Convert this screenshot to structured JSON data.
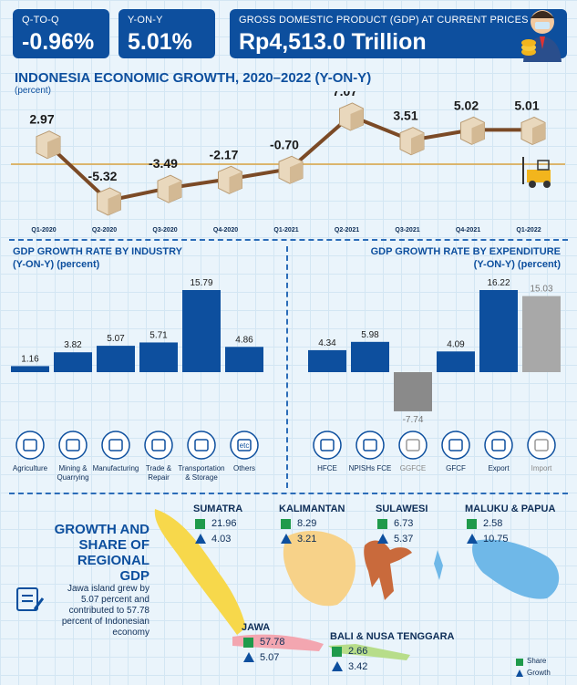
{
  "header": {
    "qtoq": {
      "label": "Q-TO-Q",
      "value": "-0.96%"
    },
    "yony": {
      "label": "Y-ON-Y",
      "value": "5.01%"
    },
    "gdp": {
      "label": "GROSS DOMESTIC PRODUCT (GDP) AT CURRENT PRICES",
      "value": "Rp4,513.0 Trillion"
    }
  },
  "growth": {
    "title": "INDONESIA ECONOMIC GROWTH, 2020–2022 (Y-ON-Y)",
    "unit": "(percent)"
  },
  "industry": {
    "title": "GDP GROWTH RATE BY INDUSTRY",
    "unit": "(Y-ON-Y) (percent)"
  },
  "expenditure": {
    "title": "GDP GROWTH RATE BY EXPENDITURE",
    "unit": "(Y-ON-Y) (percent)"
  },
  "regional": {
    "title_lines": [
      "GROWTH AND",
      "SHARE OF",
      "REGIONAL GDP"
    ],
    "note_lines": [
      "Jawa island grew by",
      "5.07 percent and",
      "contributed to 57.78",
      "percent of Indonesian",
      "economy"
    ],
    "legend": {
      "share": "Share",
      "growth": "Growth"
    },
    "regions": [
      {
        "name": "SUMATRA",
        "share": "21.96",
        "growth": "4.03"
      },
      {
        "name": "KALIMANTAN",
        "share": "8.29",
        "growth": "3.21"
      },
      {
        "name": "SULAWESI",
        "share": "6.73",
        "growth": "5.37"
      },
      {
        "name": "MALUKU & PAPUA",
        "share": "2.58",
        "growth": "10.75"
      },
      {
        "name": "JAWA",
        "share": "57.78",
        "growth": "5.07"
      },
      {
        "name": "BALI & NUSA TENGGARA",
        "share": "2.66",
        "growth": "3.42"
      }
    ]
  },
  "chart_data": [
    {
      "type": "line",
      "title": "INDONESIA ECONOMIC GROWTH, 2020–2022 (Y-ON-Y)",
      "ylabel": "(percent)",
      "categories": [
        "Q1-2020",
        "Q2-2020",
        "Q3-2020",
        "Q4-2020",
        "Q1-2021",
        "Q2-2021",
        "Q3-2021",
        "Q4-2021",
        "Q1-2022"
      ],
      "values": [
        2.97,
        -5.32,
        -3.49,
        -2.17,
        -0.7,
        7.07,
        3.51,
        5.02,
        5.01
      ],
      "labels": [
        "2.97",
        "-5.32",
        "-3.49",
        "-2.17",
        "-0.70",
        "7.07",
        "3.51",
        "5.02",
        "5.01"
      ],
      "ylim": [
        -6,
        8
      ]
    },
    {
      "type": "bar",
      "title": "GDP GROWTH RATE BY INDUSTRY",
      "ylabel": "(Y-ON-Y) (percent)",
      "categories": [
        "Agriculture",
        "Mining & Quarrying",
        "Manufacturing",
        "Trade & Repair",
        "Transportation & Storage",
        "Others"
      ],
      "category_lines": [
        [
          "Agriculture"
        ],
        [
          "Mining &",
          "Quarrying"
        ],
        [
          "Manufacturing"
        ],
        [
          "Trade &",
          "Repair"
        ],
        [
          "Transportation",
          "& Storage"
        ],
        [
          "Others"
        ]
      ],
      "icon_texts": [
        "",
        "",
        "",
        "",
        "",
        "etc"
      ],
      "values": [
        1.16,
        3.82,
        5.07,
        5.71,
        15.79,
        4.86
      ],
      "labels": [
        "1.16",
        "3.82",
        "5.07",
        "5.71",
        "15.79",
        "4.86"
      ],
      "colors": [
        "#0d4f9e",
        "#0d4f9e",
        "#0d4f9e",
        "#0d4f9e",
        "#0d4f9e",
        "#0d4f9e"
      ]
    },
    {
      "type": "bar",
      "title": "GDP GROWTH RATE BY EXPENDITURE",
      "ylabel": "(Y-ON-Y) (percent)",
      "categories": [
        "HFCE",
        "NPISHs FCE",
        "GGFCE",
        "GFCF",
        "Export",
        "Import"
      ],
      "values": [
        4.34,
        5.98,
        -7.74,
        4.09,
        16.22,
        15.03
      ],
      "labels": [
        "4.34",
        "5.98",
        "-7.74",
        "4.09",
        "16.22",
        "15.03"
      ],
      "colors": [
        "#0d4f9e",
        "#0d4f9e",
        "#8a8a8a",
        "#0d4f9e",
        "#0d4f9e",
        "#a8a8a8"
      ]
    }
  ],
  "colors": {
    "primary": "#0d4f9e",
    "line": "#7b4a26",
    "grey": "#8a8a8a",
    "share": "#1f9a4b"
  }
}
